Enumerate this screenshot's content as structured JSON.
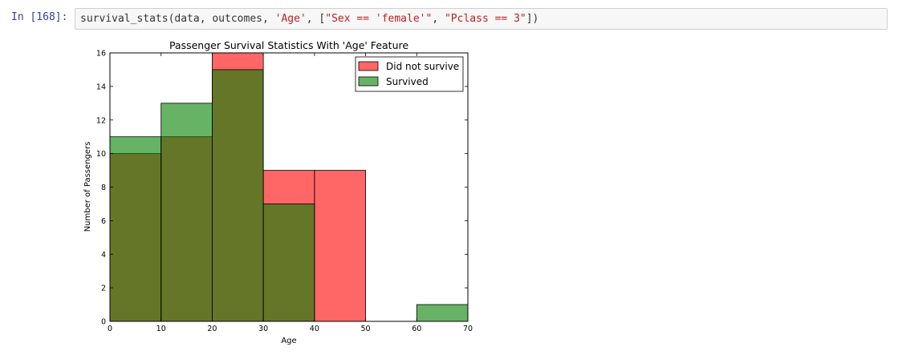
{
  "cell": {
    "prompt": "In [168]:",
    "code_fn": "survival_stats(data, outcomes, ",
    "code_arg1": "'Age'",
    "code_mid": ", [",
    "code_arg2": "\"Sex == 'female'\"",
    "code_sep": ", ",
    "code_arg3": "\"Pclass == 3\"",
    "code_end": "])"
  },
  "chart_data": {
    "type": "bar",
    "title": "Passenger Survival Statistics With 'Age' Feature",
    "xlabel": "Age",
    "ylabel": "Number of Passengers",
    "xlim": [
      0,
      70
    ],
    "ylim": [
      0,
      16
    ],
    "xticks": [
      0,
      10,
      20,
      30,
      40,
      50,
      60,
      70
    ],
    "yticks": [
      0,
      2,
      4,
      6,
      8,
      10,
      12,
      14,
      16
    ],
    "bins": [
      [
        0,
        10
      ],
      [
        10,
        20
      ],
      [
        20,
        30
      ],
      [
        30,
        40
      ],
      [
        40,
        50
      ],
      [
        50,
        60
      ],
      [
        60,
        70
      ]
    ],
    "series": [
      {
        "name": "Did not survive",
        "color": "#ff0000",
        "values": [
          10,
          11,
          16,
          9,
          9,
          0,
          0
        ]
      },
      {
        "name": "Survived",
        "color": "#008000",
        "values": [
          11,
          13,
          15,
          7,
          0,
          0,
          1
        ]
      }
    ],
    "legend": [
      "Did not survive",
      "Survived"
    ],
    "legend_position": "upper right"
  }
}
